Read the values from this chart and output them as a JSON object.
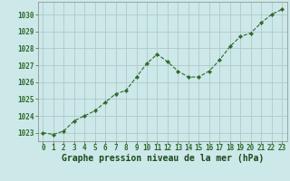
{
  "x": [
    0,
    1,
    2,
    3,
    4,
    5,
    6,
    7,
    8,
    9,
    10,
    11,
    12,
    13,
    14,
    15,
    16,
    17,
    18,
    19,
    20,
    21,
    22,
    23
  ],
  "y": [
    1023.0,
    1022.9,
    1023.1,
    1023.7,
    1024.0,
    1024.3,
    1024.8,
    1025.3,
    1025.5,
    1026.3,
    1027.1,
    1027.65,
    1027.2,
    1026.65,
    1026.3,
    1026.3,
    1026.65,
    1027.3,
    1028.1,
    1028.7,
    1028.9,
    1029.5,
    1030.0,
    1030.3
  ],
  "line_color": "#2d6a2d",
  "marker_color": "#2d6a2d",
  "bg_color": "#cce8e8",
  "grid_color": "#b0c8c8",
  "xlabel": "Graphe pression niveau de la mer (hPa)",
  "xlabel_color": "#1a4a1a",
  "tick_color": "#2d6a2d",
  "ylim": [
    1022.5,
    1030.75
  ],
  "xlim": [
    -0.5,
    23.5
  ],
  "yticks": [
    1023,
    1024,
    1025,
    1026,
    1027,
    1028,
    1029,
    1030
  ],
  "xticks": [
    0,
    1,
    2,
    3,
    4,
    5,
    6,
    7,
    8,
    9,
    10,
    11,
    12,
    13,
    14,
    15,
    16,
    17,
    18,
    19,
    20,
    21,
    22,
    23
  ],
  "tick_fontsize": 5.5,
  "xlabel_fontsize": 7.0
}
